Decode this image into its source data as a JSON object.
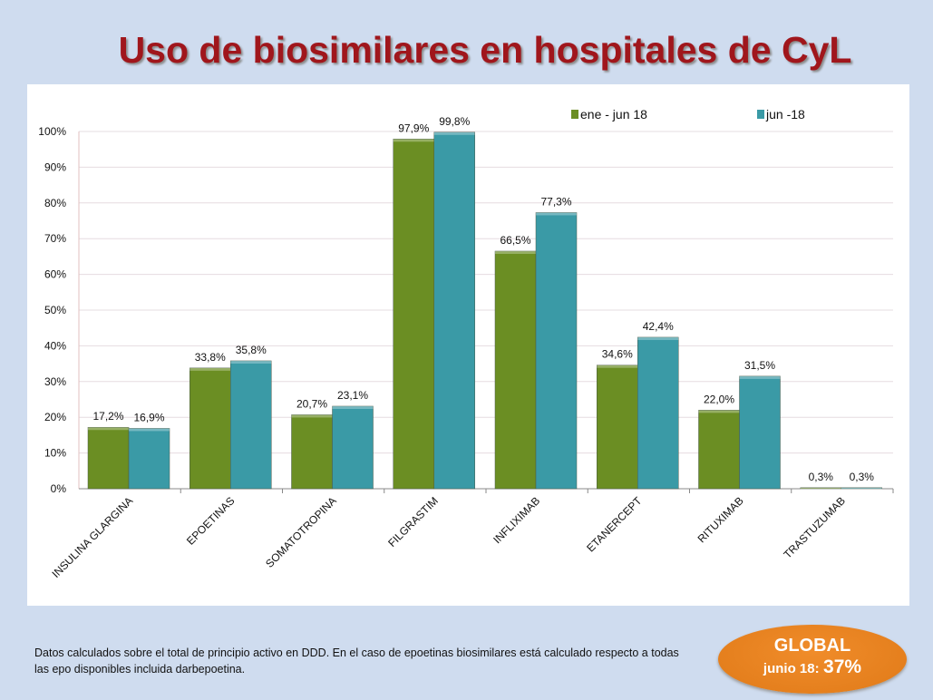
{
  "title": "Uso de biosimilares en hospitales de CyL",
  "note": "Datos calculados sobre el total de principio activo en DDD. En el caso de epoetinas biosimilares está calculado respecto a todas las epo disponibles incluida darbepoetina.",
  "global": {
    "label": "GLOBAL",
    "period": "junio 18:",
    "value": "37%",
    "color": "#e8821f"
  },
  "chart_data": {
    "type": "bar",
    "categories": [
      "INSULINA GLARGINA",
      "EPOETINAS",
      "SOMATOTROPINA",
      "FILGRASTIM",
      "INFLIXIMAB",
      "ETANERCEPT",
      "RITUXIMAB",
      "TRASTUZUMAB"
    ],
    "series": [
      {
        "name": "ene - jun 18",
        "color": "#6b8e23",
        "values": [
          17.2,
          33.8,
          20.7,
          97.9,
          66.5,
          34.6,
          22.0,
          0.3
        ],
        "labels": [
          "17,2%",
          "33,8%",
          "20,7%",
          "97,9%",
          "66,5%",
          "34,6%",
          "22,0%",
          "0,3%"
        ]
      },
      {
        "name": "jun -18",
        "color": "#3a9aa6",
        "values": [
          16.9,
          35.8,
          23.1,
          99.8,
          77.3,
          42.4,
          31.5,
          0.3
        ],
        "labels": [
          "16,9%",
          "35,8%",
          "23,1%",
          "99,8%",
          "77,3%",
          "42,4%",
          "31,5%",
          "0,3%"
        ]
      }
    ],
    "ylim": [
      0,
      100
    ],
    "yticks": [
      "0%",
      "10%",
      "20%",
      "30%",
      "40%",
      "50%",
      "60%",
      "70%",
      "80%",
      "90%",
      "100%"
    ],
    "grid": true,
    "legend": "top-right"
  }
}
